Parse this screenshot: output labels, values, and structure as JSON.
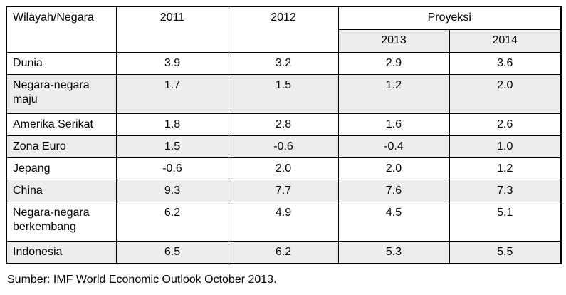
{
  "table": {
    "header": {
      "region_col": "Wilayah/Negara",
      "year_2011": "2011",
      "year_2012": "2012",
      "proyeksi_label": "Proyeksi",
      "proyeksi_years": {
        "y2013": "2013",
        "y2014": "2014"
      }
    },
    "rows": [
      {
        "label": "Dunia",
        "values": [
          "3.9",
          "3.2",
          "2.9",
          "3.6"
        ]
      },
      {
        "label": "Negara-negara maju",
        "values": [
          "1.7",
          "1.5",
          "1.2",
          "2.0"
        ]
      },
      {
        "label": "Amerika Serikat",
        "values": [
          "1.8",
          "2.8",
          "1.6",
          "2.6"
        ]
      },
      {
        "label": "Zona Euro",
        "values": [
          "1.5",
          "-0.6",
          "-0.4",
          "1.0"
        ]
      },
      {
        "label": "Jepang",
        "values": [
          "-0.6",
          "2.0",
          "2.0",
          "1.2"
        ]
      },
      {
        "label": "China",
        "values": [
          "9.3",
          "7.7",
          "7.6",
          "7.3"
        ]
      },
      {
        "label": "Negara-negara berkembang",
        "values": [
          "6.2",
          "4.9",
          "4.5",
          "5.1"
        ]
      },
      {
        "label": "Indonesia",
        "values": [
          "6.5",
          "6.2",
          "5.3",
          "5.5"
        ]
      }
    ],
    "colors": {
      "row_shade": "#ededed",
      "border": "#000000",
      "background": "#ffffff",
      "text": "#000000"
    }
  },
  "footer": {
    "source_note": "Sumber: IMF World Economic Outlook October 2013."
  }
}
